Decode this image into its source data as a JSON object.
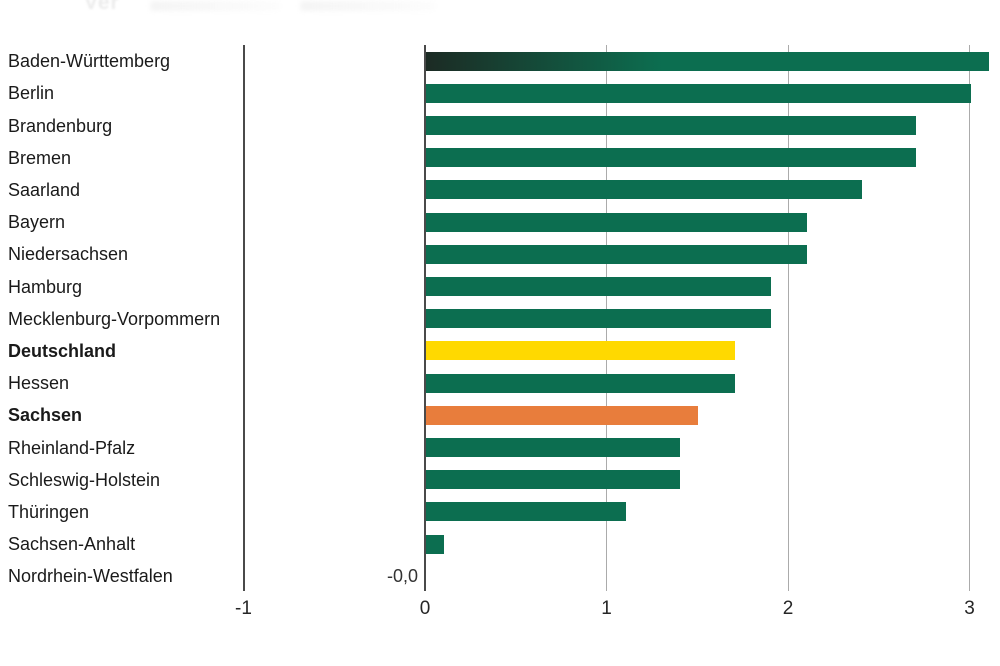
{
  "page": {
    "background": "#ffffff",
    "faded_title_fragment": "Ver"
  },
  "chart_data": {
    "type": "bar",
    "orientation": "horizontal",
    "title_fragment": "Ver",
    "categories": [
      "Baden-Württemberg",
      "Berlin",
      "Brandenburg",
      "Bremen",
      "Saarland",
      "Bayern",
      "Niedersachsen",
      "Hamburg",
      "Mecklenburg-Vorpommern",
      "Deutschland",
      "Hessen",
      "Sachsen",
      "Rheinland-Pfalz",
      "Schleswig-Holstein",
      "Thüringen",
      "Sachsen-Anhalt",
      "Nordrhein-Westfalen"
    ],
    "values": [
      3.1,
      3.0,
      2.7,
      2.7,
      2.4,
      2.1,
      2.1,
      1.9,
      1.9,
      1.7,
      1.7,
      1.5,
      1.4,
      1.4,
      1.1,
      0.1,
      0
    ],
    "value_display_overrides": {
      "Nordrhein-Westfalen": "-0,0"
    },
    "bold_categories": [
      "Deutschland",
      "Sachsen"
    ],
    "bar_color_default": "#0C6E50",
    "bar_color_overrides": {
      "Deutschland": "#FFD900",
      "Sachsen": "#E87D3C"
    },
    "first_bar_gradient_start": "#1C2B24",
    "xlim": [
      -1,
      3
    ],
    "x_ticks": [
      -1,
      0,
      1,
      2,
      3
    ],
    "x_tick_labels": [
      "-1",
      "0",
      "1",
      "2",
      "3"
    ],
    "grid": "vertical-gridlines-only",
    "legend": "none",
    "axis_colors": {
      "zero_and_negative_line": "#4A4A4A",
      "positive_gridline": "#ABABAB"
    },
    "tick_label_color": "#262626",
    "category_label_color": "#1A1A1A"
  }
}
